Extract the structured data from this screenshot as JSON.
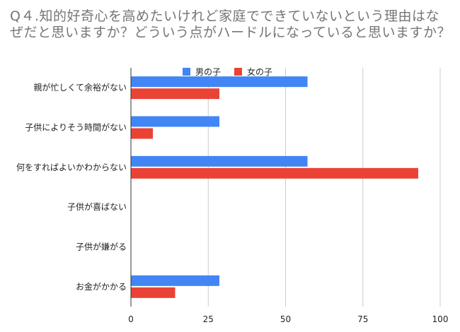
{
  "chart_data": {
    "type": "bar",
    "orientation": "horizontal",
    "title": "Q４.知的好奇心を高めたいけれど家庭でできていないという理由はなぜだと思いますか？どういう点がハードルになっていると思いますか？",
    "categories": [
      "親が忙しくて余裕がない",
      "子供によりそう時間がない",
      "何をすればよいかわからない",
      "子供が喜ばない",
      "子供が嫌がる",
      "お金がかかる"
    ],
    "series": [
      {
        "name": "男の子",
        "color": "#4285f4",
        "values": [
          57.1,
          28.6,
          57.1,
          0,
          0,
          28.6
        ]
      },
      {
        "name": "女の子",
        "color": "#ea4335",
        "values": [
          28.6,
          7.1,
          92.9,
          0,
          0,
          14.3
        ]
      }
    ],
    "xlim": [
      0,
      100
    ],
    "xticks": [
      "0",
      "25",
      "50",
      "75",
      "100"
    ],
    "grid": true,
    "legend": "top-center",
    "xlabel": "",
    "ylabel": ""
  }
}
